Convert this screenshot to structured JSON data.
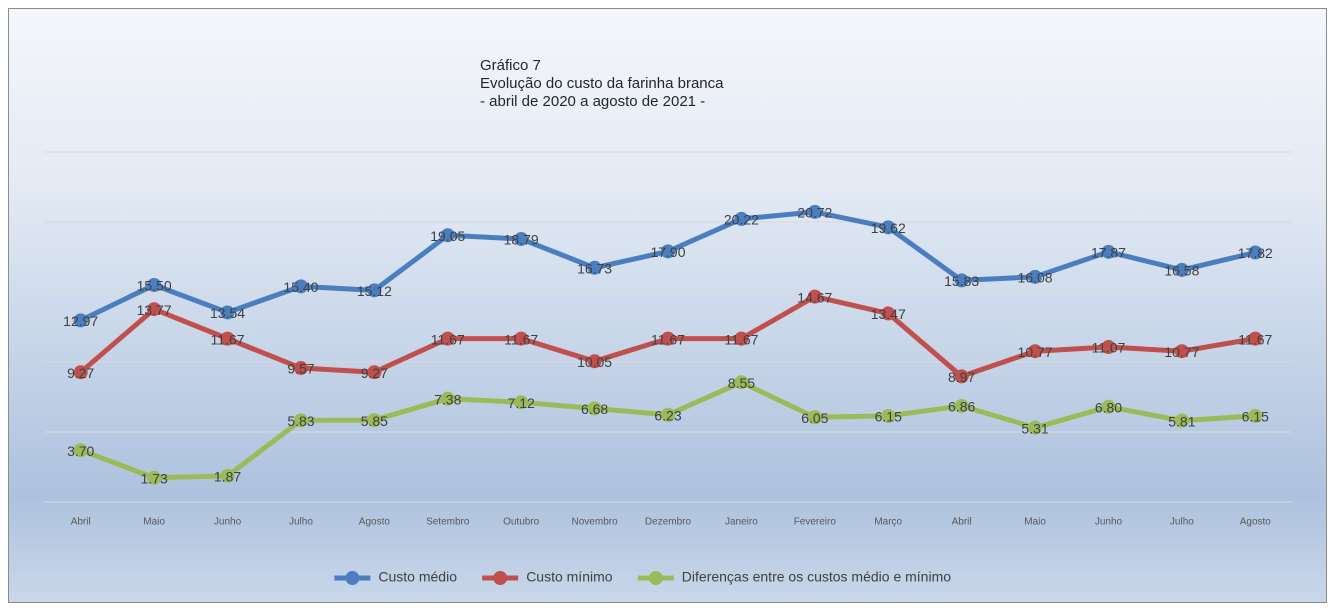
{
  "chart_data": {
    "type": "line",
    "title": [
      "Gráfico 7",
      "Evolução do custo da farinha branca",
      "- abril de 2020 a agosto de 2021 -"
    ],
    "categories": [
      "Abril",
      "Maio",
      "Junho",
      "Julho",
      "Agosto",
      "Setembro",
      "Outubro",
      "Novembro",
      "Dezembro",
      "Janeiro",
      "Fevereiro",
      "Março",
      "Abril",
      "Maio",
      "Junho",
      "Julho",
      "Agosto"
    ],
    "series": [
      {
        "name": "Custo médio",
        "color": "#4a7ebf",
        "values": [
          12.97,
          15.5,
          13.54,
          15.4,
          15.12,
          19.05,
          18.79,
          16.73,
          17.9,
          20.22,
          20.72,
          19.62,
          15.83,
          16.08,
          17.87,
          16.58,
          17.82
        ],
        "value_labels": [
          "12.97",
          "15.50",
          "13.54",
          "15.40",
          "15.12",
          "19.05",
          "18.79",
          "16.73",
          "17.90",
          "20.22",
          "20.72",
          "19.62",
          "15.83",
          "16.08",
          "17.87",
          "16.58",
          "17.82"
        ]
      },
      {
        "name": "Custo mínimo",
        "color": "#c0504d",
        "values": [
          9.27,
          13.77,
          11.67,
          9.57,
          9.27,
          11.67,
          11.67,
          10.05,
          11.67,
          11.67,
          14.67,
          13.47,
          8.97,
          10.77,
          11.07,
          10.77,
          11.67
        ],
        "value_labels": [
          "9.27",
          "13.77",
          "11.67",
          "9.57",
          "9.27",
          "11.67",
          "11.67",
          "10.05",
          "11.67",
          "11.67",
          "14.67",
          "13.47",
          "8.97",
          "10.77",
          "11.07",
          "10.77",
          "11.67"
        ]
      },
      {
        "name": "Diferenças entre os custos médio e mínimo",
        "color": "#9bbb59",
        "values": [
          3.7,
          1.73,
          1.87,
          5.83,
          5.85,
          7.38,
          7.12,
          6.68,
          6.23,
          8.55,
          6.05,
          6.15,
          6.86,
          5.31,
          6.8,
          5.81,
          6.15
        ],
        "value_labels": [
          "3.70",
          "1.73",
          "1.87",
          "5.83",
          "5.85",
          "7.38",
          "7.12",
          "6.68",
          "6.23",
          "8.55",
          "6.05",
          "6.15",
          "6.86",
          "5.31",
          "6.80",
          "5.81",
          "6.15"
        ]
      }
    ],
    "ylim": [
      0,
      25
    ],
    "yticks": [
      0,
      5,
      10,
      15,
      20,
      25
    ],
    "grid": true,
    "legend": "bottom"
  }
}
